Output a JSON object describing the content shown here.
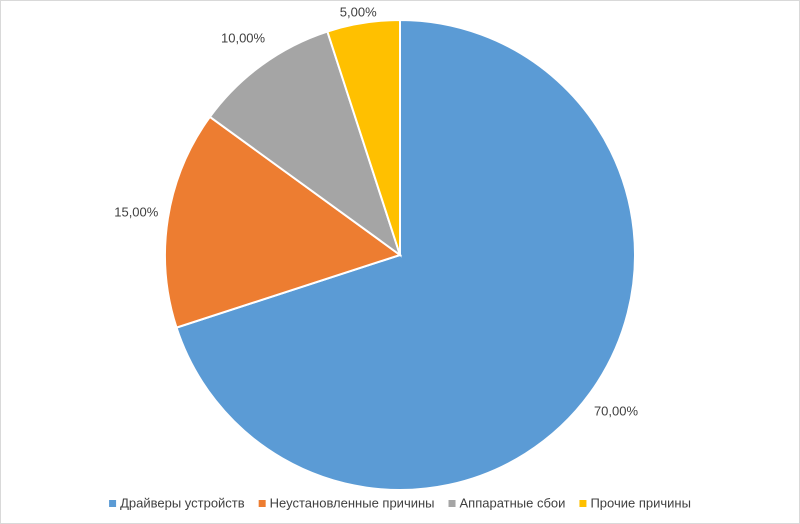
{
  "chart_data": {
    "type": "pie",
    "categories": [
      "Драйверы устройств",
      "Неустановленные причины",
      "Аппаратные сбои",
      "Прочие причины"
    ],
    "values": [
      70,
      15,
      10,
      5
    ],
    "value_labels": [
      "70,00%",
      "15,00%",
      "10,00%",
      "5,00%"
    ],
    "colors": [
      "#5b9bd5",
      "#ed7d31",
      "#a5a5a5",
      "#ffc000"
    ],
    "legend": "bottom"
  }
}
